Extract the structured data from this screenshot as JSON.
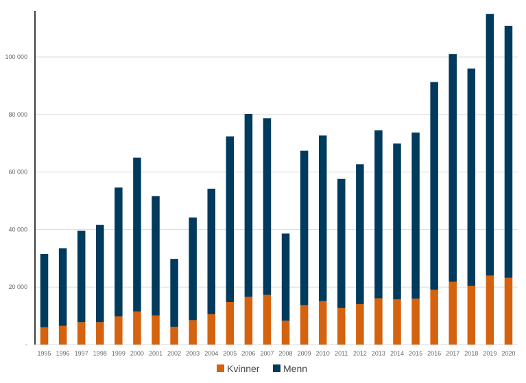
{
  "chart_data": {
    "type": "bar",
    "stacked": true,
    "categories": [
      "1995",
      "1996",
      "1997",
      "1998",
      "1999",
      "2000",
      "2001",
      "2002",
      "2003",
      "2004",
      "2005",
      "2006",
      "2007",
      "2008",
      "2009",
      "2010",
      "2011",
      "2012",
      "2013",
      "2014",
      "2015",
      "2016",
      "2017",
      "2018",
      "2019",
      "2020"
    ],
    "series": [
      {
        "name": "Kvinner",
        "color": "#d4620f",
        "values": [
          6000,
          6500,
          7800,
          7800,
          9800,
          11500,
          10100,
          6200,
          8500,
          10600,
          14800,
          16600,
          17300,
          8300,
          13700,
          15100,
          12700,
          14100,
          16100,
          15700,
          16000,
          19100,
          21800,
          20400,
          24000,
          23200
        ]
      },
      {
        "name": "Menn",
        "color": "#003a5c",
        "values": [
          25500,
          27000,
          31800,
          33800,
          44800,
          53500,
          41500,
          23600,
          35700,
          43600,
          57600,
          63600,
          61400,
          30300,
          53700,
          57600,
          44900,
          48600,
          58400,
          54200,
          57700,
          72200,
          79200,
          75600,
          91000,
          87600
        ]
      }
    ],
    "y_ticks": [
      "-",
      "20 000",
      "40 000",
      "60 000",
      "80 000",
      "100 000"
    ],
    "ylim": [
      0,
      116000
    ],
    "grid": true,
    "legend": "bottom-center"
  }
}
